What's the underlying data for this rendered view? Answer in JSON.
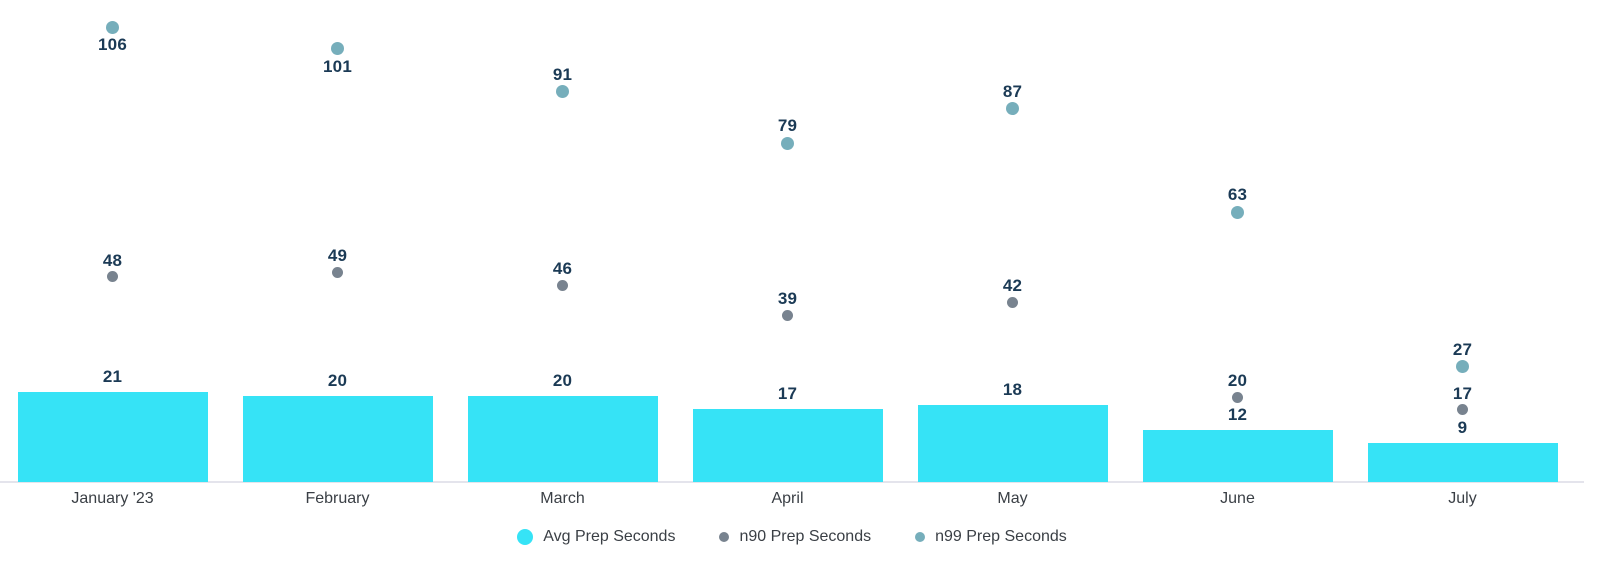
{
  "chart_data": {
    "type": "bar",
    "title": "",
    "xlabel": "",
    "ylabel": "",
    "categories": [
      "January '23",
      "February",
      "March",
      "April",
      "May",
      "June",
      "July"
    ],
    "series": [
      {
        "name": "Avg Prep Seconds",
        "type": "bar",
        "color": "#36E3F6",
        "values": [
          21,
          20,
          20,
          17,
          18,
          12,
          9
        ]
      },
      {
        "name": "n90 Prep Seconds",
        "type": "scatter",
        "color": "#78838F",
        "values": [
          48,
          49,
          46,
          39,
          42,
          20,
          17
        ]
      },
      {
        "name": "n99 Prep Seconds",
        "type": "scatter",
        "color": "#76AEBB",
        "values": [
          106,
          101,
          91,
          79,
          87,
          63,
          27
        ]
      }
    ],
    "ylim": [
      0,
      112
    ],
    "grid": false,
    "legend_position": "bottom",
    "value_labels_shown": true,
    "value_label_color": "#1B3A55",
    "axis_line_color": "#E4E4EC",
    "axis_label_color": "#3A3F45"
  }
}
